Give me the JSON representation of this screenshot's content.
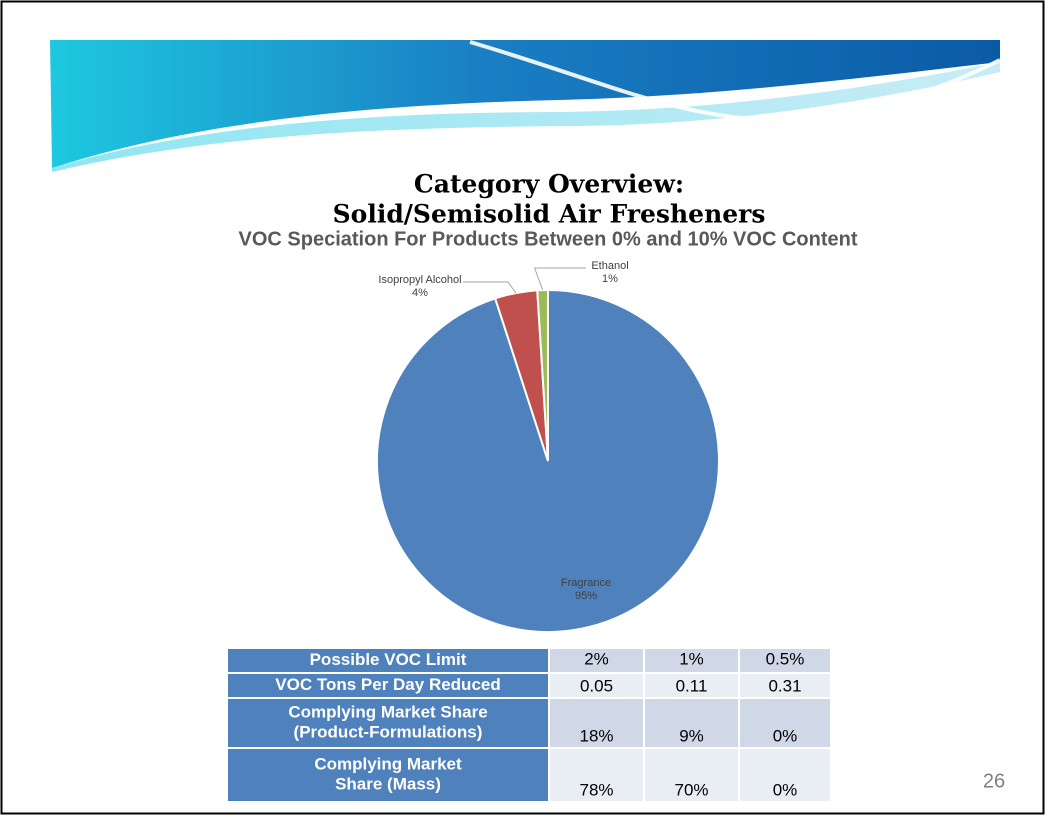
{
  "slide": {
    "title_lines": [
      "Category Overview:",
      "Solid/Semisolid Air Fresheners"
    ],
    "page_number": "26"
  },
  "chart_data": {
    "type": "pie",
    "title": "VOC Speciation For Products Between 0% and 10% VOC Content",
    "categories": [
      "Fragrance",
      "Isopropyl Alcohol",
      "Ethanol"
    ],
    "values": [
      95,
      4,
      1
    ],
    "value_labels": [
      "95%",
      "4%",
      "1%"
    ],
    "colors": [
      "#4f81bd",
      "#c0504d",
      "#9bbb59"
    ]
  },
  "table": {
    "rows": [
      [
        [
          "Possible VOC Limit"
        ],
        "2%",
        "1%",
        "0.5%"
      ],
      [
        [
          "VOC Tons Per Day Reduced"
        ],
        "0.05",
        "0.11",
        "0.31"
      ],
      [
        [
          "Complying Market Share",
          "(Product-Formulations)"
        ],
        "18%",
        "9%",
        "0%"
      ],
      [
        [
          "Complying Market",
          "Share (Mass)"
        ],
        "78%",
        "70%",
        "0%"
      ]
    ]
  }
}
